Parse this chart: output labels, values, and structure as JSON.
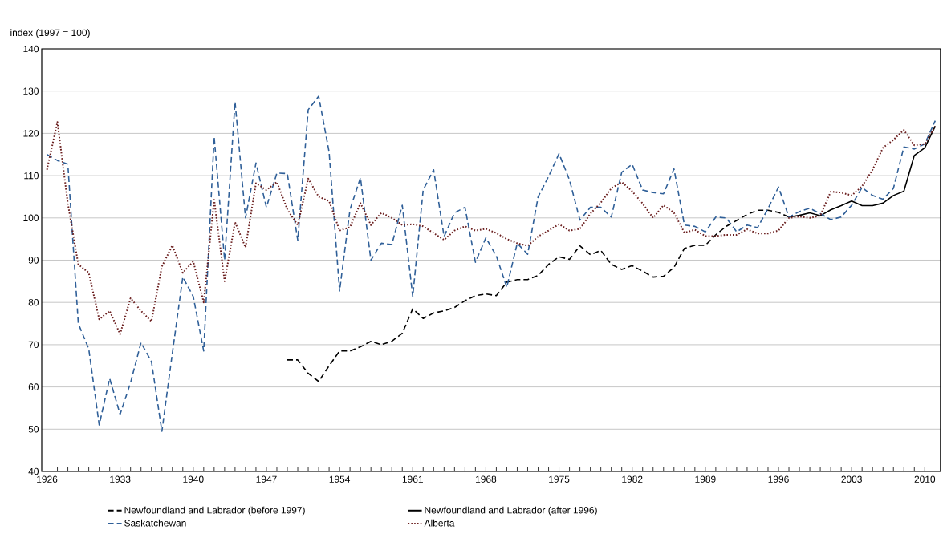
{
  "chart_data": {
    "type": "line",
    "ylabel": "index (1997 = 100)",
    "xlim": [
      1925.5,
      2011.5
    ],
    "ylim": [
      40,
      140
    ],
    "xticks": [
      1926,
      1933,
      1940,
      1947,
      1954,
      1961,
      1968,
      1975,
      1982,
      1989,
      1996,
      2003,
      2010
    ],
    "yticks": [
      40,
      50,
      60,
      70,
      80,
      90,
      100,
      110,
      120,
      130,
      140
    ],
    "grid": "y",
    "legend": "bottom",
    "series": [
      {
        "name": "Newfoundland and Labrador (before 1997)",
        "color": "#000000",
        "line_style": "dashed",
        "x": [
          1949,
          1950,
          1951,
          1952,
          1953,
          1954,
          1955,
          1956,
          1957,
          1958,
          1959,
          1960,
          1961,
          1962,
          1963,
          1964,
          1965,
          1966,
          1967,
          1968,
          1969,
          1970,
          1971,
          1972,
          1973,
          1974,
          1975,
          1976,
          1977,
          1978,
          1979,
          1980,
          1981,
          1982,
          1983,
          1984,
          1985,
          1986,
          1987,
          1988,
          1989,
          1990,
          1991,
          1992,
          1993,
          1994,
          1995,
          1996,
          1997
        ],
        "values": [
          66.4,
          66.4,
          63.2,
          61.3,
          65,
          68.5,
          68.5,
          69.5,
          70.8,
          70,
          70.8,
          72.7,
          78.5,
          76.2,
          77.5,
          78,
          78.8,
          80.4,
          81.6,
          82,
          81.6,
          84.8,
          85.4,
          85.4,
          86.4,
          89,
          90.8,
          90.2,
          93.4,
          91.3,
          92.3,
          89,
          87.8,
          88.7,
          87.4,
          86,
          86.2,
          88.3,
          92.8,
          93.5,
          93.5,
          96,
          98,
          99.4,
          100.8,
          101.8,
          101.8,
          101.3,
          100.2
        ]
      },
      {
        "name": "Newfoundland and Labrador (after 1996)",
        "color": "#000000",
        "line_style": "solid",
        "x": [
          1997,
          1998,
          1999,
          2000,
          2001,
          2002,
          2003,
          2004,
          2005,
          2006,
          2007,
          2008,
          2009,
          2010,
          2011
        ],
        "values": [
          100.2,
          100.6,
          101.2,
          100.5,
          101.9,
          102.9,
          104,
          102.9,
          102.9,
          103.5,
          105.3,
          106.3,
          114.8,
          116.6,
          121.7
        ]
      },
      {
        "name": "Saskatchewan",
        "color": "#2f5f98",
        "line_style": "dashed",
        "x": [
          1926,
          1927,
          1928,
          1929,
          1930,
          1931,
          1932,
          1933,
          1934,
          1935,
          1936,
          1937,
          1938,
          1939,
          1940,
          1941,
          1942,
          1943,
          1944,
          1945,
          1946,
          1947,
          1948,
          1949,
          1950,
          1951,
          1952,
          1953,
          1954,
          1955,
          1956,
          1957,
          1958,
          1959,
          1960,
          1961,
          1962,
          1963,
          1964,
          1965,
          1966,
          1967,
          1968,
          1969,
          1970,
          1971,
          1972,
          1973,
          1974,
          1975,
          1976,
          1977,
          1978,
          1979,
          1980,
          1981,
          1982,
          1983,
          1984,
          1985,
          1986,
          1987,
          1988,
          1989,
          1990,
          1991,
          1992,
          1993,
          1994,
          1995,
          1996,
          1997,
          1998,
          1999,
          2000,
          2001,
          2002,
          2003,
          2004,
          2005,
          2006,
          2007,
          2008,
          2009,
          2010,
          2011
        ],
        "values": [
          115,
          113.6,
          112.7,
          75,
          69,
          51,
          62,
          53.5,
          61,
          70.5,
          66,
          49.5,
          68,
          86,
          81.4,
          68.5,
          119.2,
          90,
          127.5,
          100,
          113,
          102.5,
          110.6,
          110.5,
          94.7,
          125.6,
          128.8,
          115.6,
          82.7,
          102,
          109.5,
          90,
          94,
          93.7,
          103,
          81.4,
          106.6,
          111.4,
          95.6,
          101.2,
          102.5,
          89.5,
          95.3,
          91,
          83.6,
          94,
          91.4,
          105,
          109.8,
          115.2,
          109,
          99.5,
          102.5,
          102.5,
          100.2,
          110.8,
          112.7,
          106.6,
          106,
          105.7,
          111.6,
          98.3,
          98,
          96.7,
          100.2,
          100,
          96.7,
          98.3,
          97.7,
          102.2,
          107.3,
          100.2,
          101.5,
          102.3,
          101,
          99.6,
          100.2,
          103,
          107.2,
          105.3,
          104.4,
          107,
          116.8,
          116.3,
          117.5,
          123
        ]
      },
      {
        "name": "Alberta",
        "color": "#6b1f1f",
        "line_style": "dotted",
        "x": [
          1926,
          1927,
          1928,
          1929,
          1930,
          1931,
          1932,
          1933,
          1934,
          1935,
          1936,
          1937,
          1938,
          1939,
          1940,
          1941,
          1942,
          1943,
          1944,
          1945,
          1946,
          1947,
          1948,
          1949,
          1950,
          1951,
          1952,
          1953,
          1954,
          1955,
          1956,
          1957,
          1958,
          1959,
          1960,
          1961,
          1962,
          1963,
          1964,
          1965,
          1966,
          1967,
          1968,
          1969,
          1970,
          1971,
          1972,
          1973,
          1974,
          1975,
          1976,
          1977,
          1978,
          1979,
          1980,
          1981,
          1982,
          1983,
          1984,
          1985,
          1986,
          1987,
          1988,
          1989,
          1990,
          1991,
          1992,
          1993,
          1994,
          1995,
          1996,
          1997,
          1998,
          1999,
          2000,
          2001,
          2002,
          2003,
          2004,
          2005,
          2006,
          2007,
          2008,
          2009,
          2010,
          2011
        ],
        "values": [
          111.4,
          122.7,
          103.4,
          89,
          87,
          76,
          78,
          72.5,
          81,
          78,
          75.5,
          88.5,
          93.5,
          87,
          89.7,
          80,
          104.3,
          85,
          99,
          93,
          108.2,
          106.6,
          108.5,
          102,
          98.3,
          109.3,
          105,
          104,
          97,
          97.8,
          103.5,
          98.3,
          101.2,
          100,
          98.3,
          98.5,
          98,
          96.4,
          94.8,
          97,
          98,
          97,
          97.4,
          96.4,
          95,
          94,
          93.4,
          95.6,
          97,
          98.5,
          97,
          97.4,
          101,
          103.6,
          107,
          108.5,
          106.3,
          103.4,
          100,
          103,
          101.2,
          96.5,
          97.2,
          95.7,
          95.7,
          96,
          96,
          97.3,
          96.3,
          96.3,
          97,
          100,
          100.3,
          100,
          100.5,
          106.2,
          106,
          105.3,
          107.5,
          111.4,
          116.6,
          118.5,
          120.8,
          117.2,
          117.5,
          121.7
        ]
      }
    ]
  }
}
